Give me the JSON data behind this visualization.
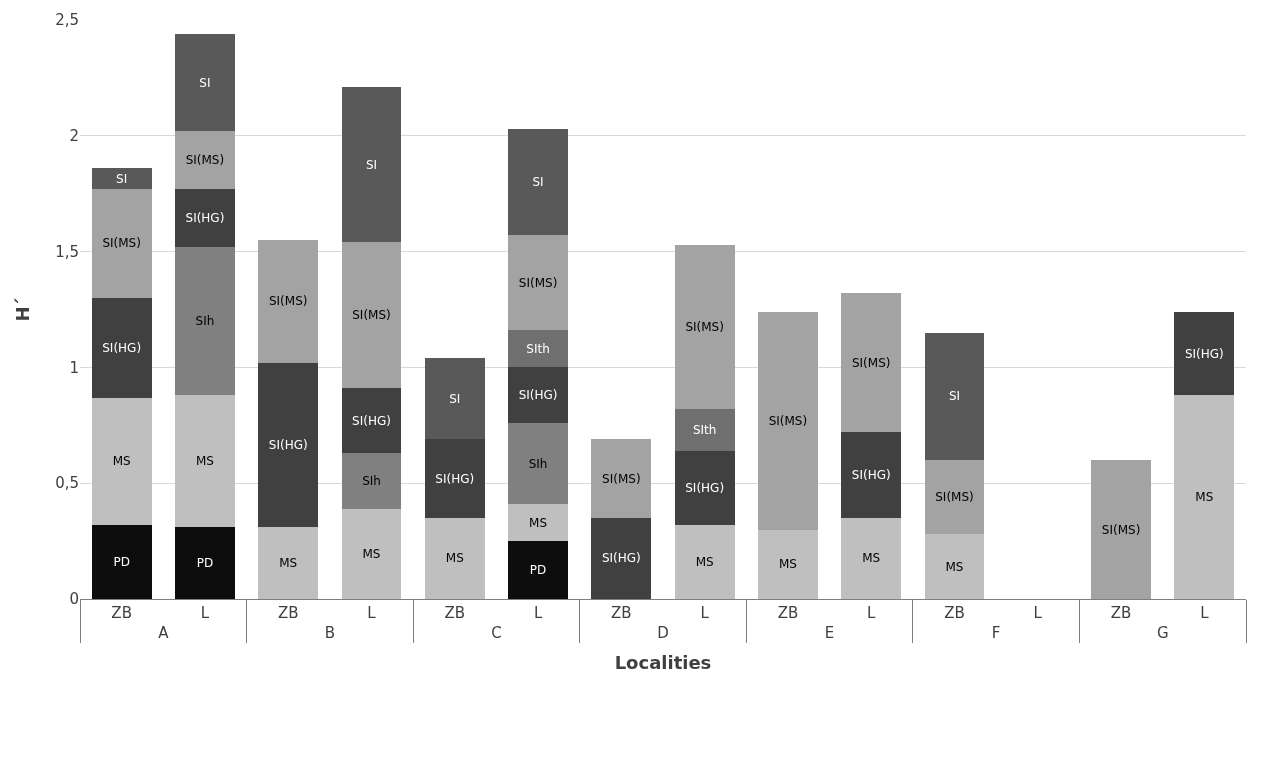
{
  "chart_data": {
    "type": "bar",
    "stacked": true,
    "xlabel": "Localities",
    "ylabel": "H´",
    "categories": [
      "ZB",
      "L",
      "ZB",
      "L",
      "ZB",
      "L",
      "ZB",
      "L",
      "ZB",
      "L",
      "ZB",
      "L",
      "ZB",
      "L"
    ],
    "annotations": [
      "A",
      "B",
      "C",
      "D",
      "E",
      "F",
      "G"
    ],
    "series": [
      {
        "name": "PD",
        "color": "#0d0d0d",
        "values": [
          0.32,
          0.31,
          null,
          null,
          null,
          0.25,
          null,
          null,
          null,
          null,
          null,
          null,
          null,
          null
        ]
      },
      {
        "name": "MS",
        "color": "#bfbfbf",
        "values": [
          0.55,
          0.57,
          0.31,
          0.39,
          0.35,
          0.16,
          null,
          0.32,
          0.3,
          0.35,
          0.28,
          null,
          null,
          0.88
        ]
      },
      {
        "name": "SIh",
        "color": "#808080",
        "values": [
          null,
          0.64,
          null,
          0.24,
          null,
          0.35,
          null,
          null,
          null,
          null,
          null,
          null,
          null,
          null
        ]
      },
      {
        "name": "SI(HG)",
        "color": "#404040",
        "values": [
          0.43,
          0.25,
          0.71,
          0.28,
          0.34,
          0.24,
          0.35,
          0.32,
          null,
          0.37,
          null,
          null,
          null,
          0.36
        ]
      },
      {
        "name": "SIth",
        "color": "#6f6f6f",
        "values": [
          null,
          null,
          null,
          null,
          null,
          0.16,
          null,
          0.18,
          null,
          null,
          null,
          null,
          null,
          null
        ]
      },
      {
        "name": "SI(MS)",
        "color": "#a3a3a3",
        "values": [
          0.47,
          0.25,
          0.53,
          0.63,
          null,
          0.41,
          0.34,
          0.71,
          0.94,
          0.6,
          0.32,
          null,
          0.6,
          null
        ]
      },
      {
        "name": "SI",
        "color": "#595959",
        "values": [
          0.09,
          0.42,
          null,
          0.67,
          0.35,
          0.46,
          null,
          null,
          null,
          null,
          0.55,
          null,
          null,
          null
        ]
      }
    ],
    "ylim": [
      0,
      2.5
    ],
    "yticks": [
      0,
      {
        "value": 0.5,
        "label": "0,5"
      },
      1,
      {
        "value": 1.5,
        "label": "1,5"
      },
      2,
      {
        "value": 2.5,
        "label": "2,5"
      }
    ],
    "grid": "y",
    "legend": false
  }
}
